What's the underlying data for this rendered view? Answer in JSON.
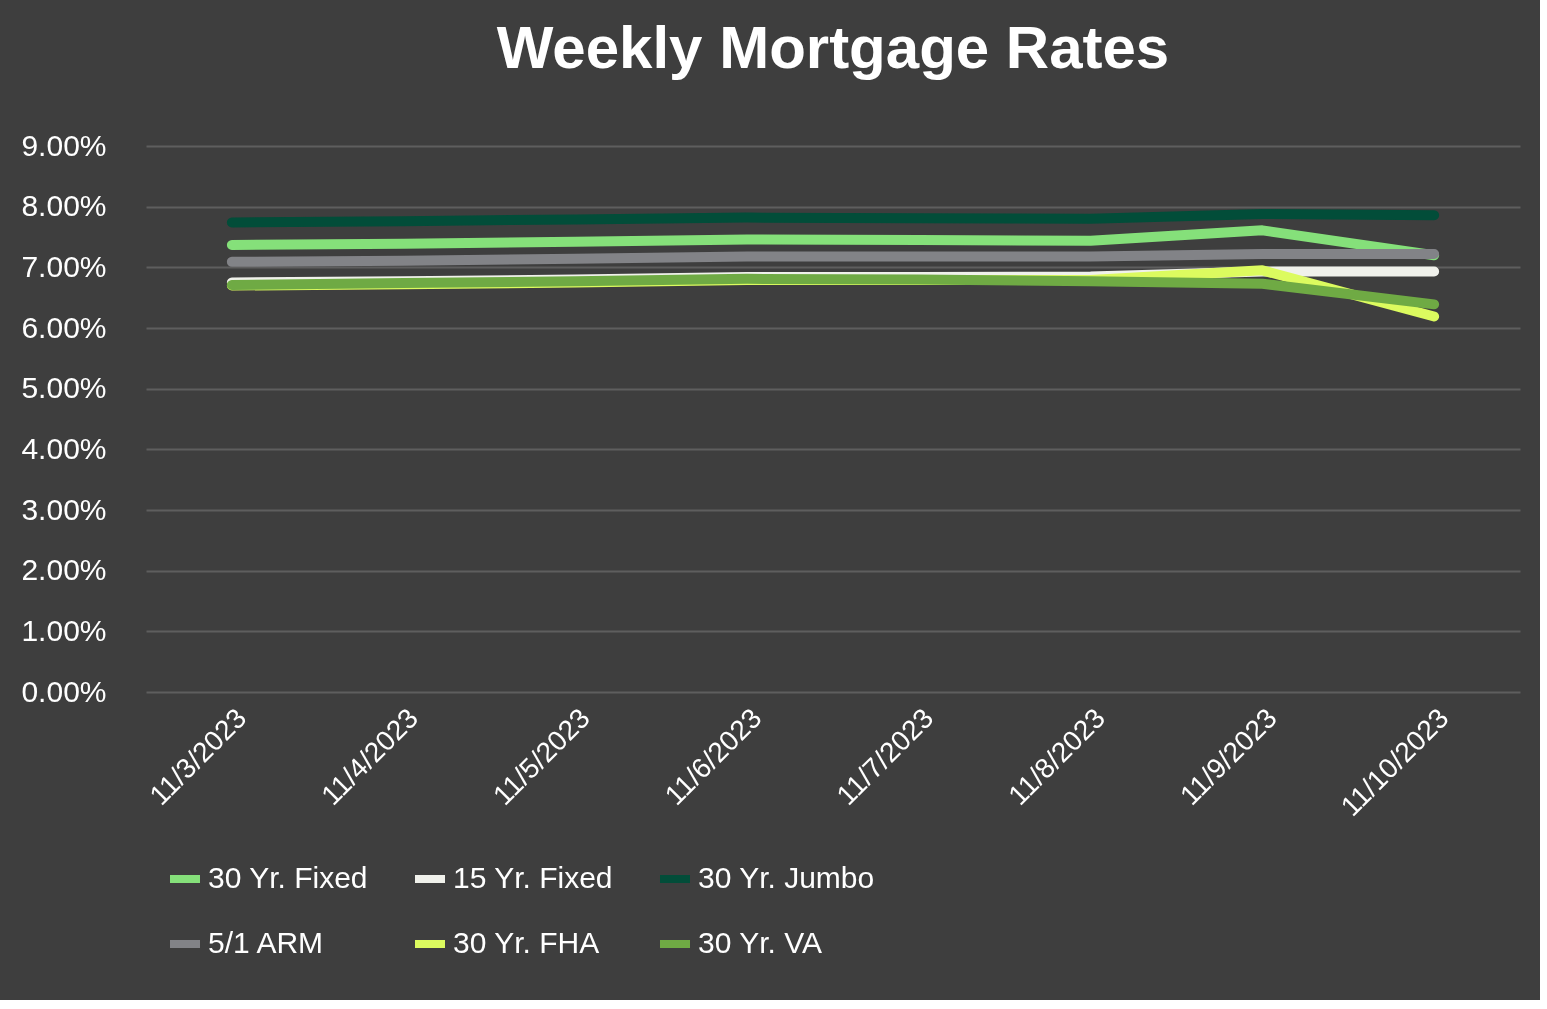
{
  "chart_data": {
    "type": "line",
    "title": "Weekly Mortgage Rates",
    "categories": [
      "11/3/2023",
      "11/4/2023",
      "11/5/2023",
      "11/6/2023",
      "11/7/2023",
      "11/8/2023",
      "11/9/2023",
      "11/10/2023"
    ],
    "series": [
      {
        "name": "30 Yr. Fixed",
        "color": "#85e07a",
        "values": [
          7.37,
          7.39,
          7.42,
          7.46,
          7.45,
          7.44,
          7.61,
          7.2
        ]
      },
      {
        "name": "15 Yr. Fixed",
        "color": "#f0f1eb",
        "values": [
          6.75,
          6.77,
          6.8,
          6.84,
          6.84,
          6.85,
          6.93,
          6.93
        ]
      },
      {
        "name": "30 Yr. Jumbo",
        "color": "#024d39",
        "values": [
          7.74,
          7.76,
          7.79,
          7.82,
          7.81,
          7.8,
          7.88,
          7.86
        ]
      },
      {
        "name": "5/1 ARM",
        "color": "#828387",
        "values": [
          7.09,
          7.11,
          7.14,
          7.18,
          7.18,
          7.18,
          7.22,
          7.22
        ]
      },
      {
        "name": "30 Yr. FHA",
        "color": "#dcfb5f",
        "values": [
          6.7,
          6.72,
          6.75,
          6.79,
          6.79,
          6.79,
          6.95,
          6.19
        ]
      },
      {
        "name": "30 Yr. VA",
        "color": "#6faa44",
        "values": [
          6.71,
          6.74,
          6.77,
          6.81,
          6.8,
          6.77,
          6.73,
          6.39
        ]
      }
    ],
    "ylim": [
      0,
      9
    ],
    "yticks": [
      {
        "value": 0,
        "label": "0.00%"
      },
      {
        "value": 1,
        "label": "1.00%"
      },
      {
        "value": 2,
        "label": "2.00%"
      },
      {
        "value": 3,
        "label": "3.00%"
      },
      {
        "value": 4,
        "label": "4.00%"
      },
      {
        "value": 5,
        "label": "5.00%"
      },
      {
        "value": 6,
        "label": "6.00%"
      },
      {
        "value": 7,
        "label": "7.00%"
      },
      {
        "value": 8,
        "label": "8.00%"
      },
      {
        "value": 9,
        "label": "9.00%"
      }
    ],
    "grid": "y",
    "legend": "bottom",
    "marker": "none",
    "line_style": "solid"
  }
}
